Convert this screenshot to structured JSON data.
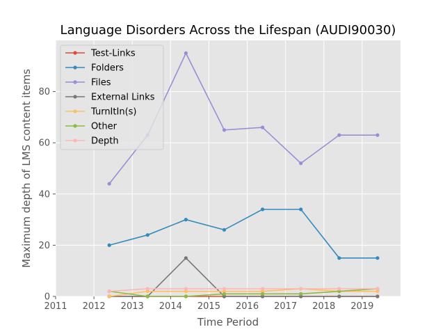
{
  "chart_data": {
    "type": "line",
    "title": "Language Disorders Across the Lifespan (AUDI90030)",
    "xlabel": "Time Period",
    "ylabel": "Maximum depth of LMS content items",
    "xlim": [
      2011,
      2020
    ],
    "ylim": [
      0,
      100
    ],
    "xticks": [
      2011,
      2012,
      2013,
      2014,
      2015,
      2016,
      2017,
      2018,
      2019
    ],
    "yticks": [
      0,
      20,
      40,
      60,
      80
    ],
    "grid": true,
    "legend_position": "top-left",
    "x": [
      2012.4,
      2013.4,
      2014.4,
      2015.4,
      2016.4,
      2017.4,
      2018.4,
      2019.4
    ],
    "series": [
      {
        "name": "Test-Links",
        "color": "#E24A33",
        "values": [
          0,
          0,
          0,
          0,
          0,
          0,
          0,
          0
        ]
      },
      {
        "name": "Folders",
        "color": "#348ABD",
        "values": [
          20,
          24,
          30,
          26,
          34,
          34,
          15,
          15
        ]
      },
      {
        "name": "Files",
        "color": "#988ED5",
        "values": [
          44,
          63,
          95,
          65,
          66,
          52,
          63,
          63
        ]
      },
      {
        "name": "External Links",
        "color": "#777777",
        "values": [
          0,
          0,
          15,
          0,
          0,
          0,
          0,
          0
        ]
      },
      {
        "name": "TurnItIn(s)",
        "color": "#FBC15E",
        "values": [
          0,
          2,
          2,
          2,
          2,
          3,
          2,
          2
        ]
      },
      {
        "name": "Other",
        "color": "#8EBA42",
        "values": [
          2,
          0,
          0,
          1,
          1,
          1,
          2,
          3
        ]
      },
      {
        "name": "Depth",
        "color": "#FFB5B8",
        "values": [
          2,
          3,
          3,
          3,
          3,
          3,
          3,
          3
        ]
      }
    ]
  }
}
